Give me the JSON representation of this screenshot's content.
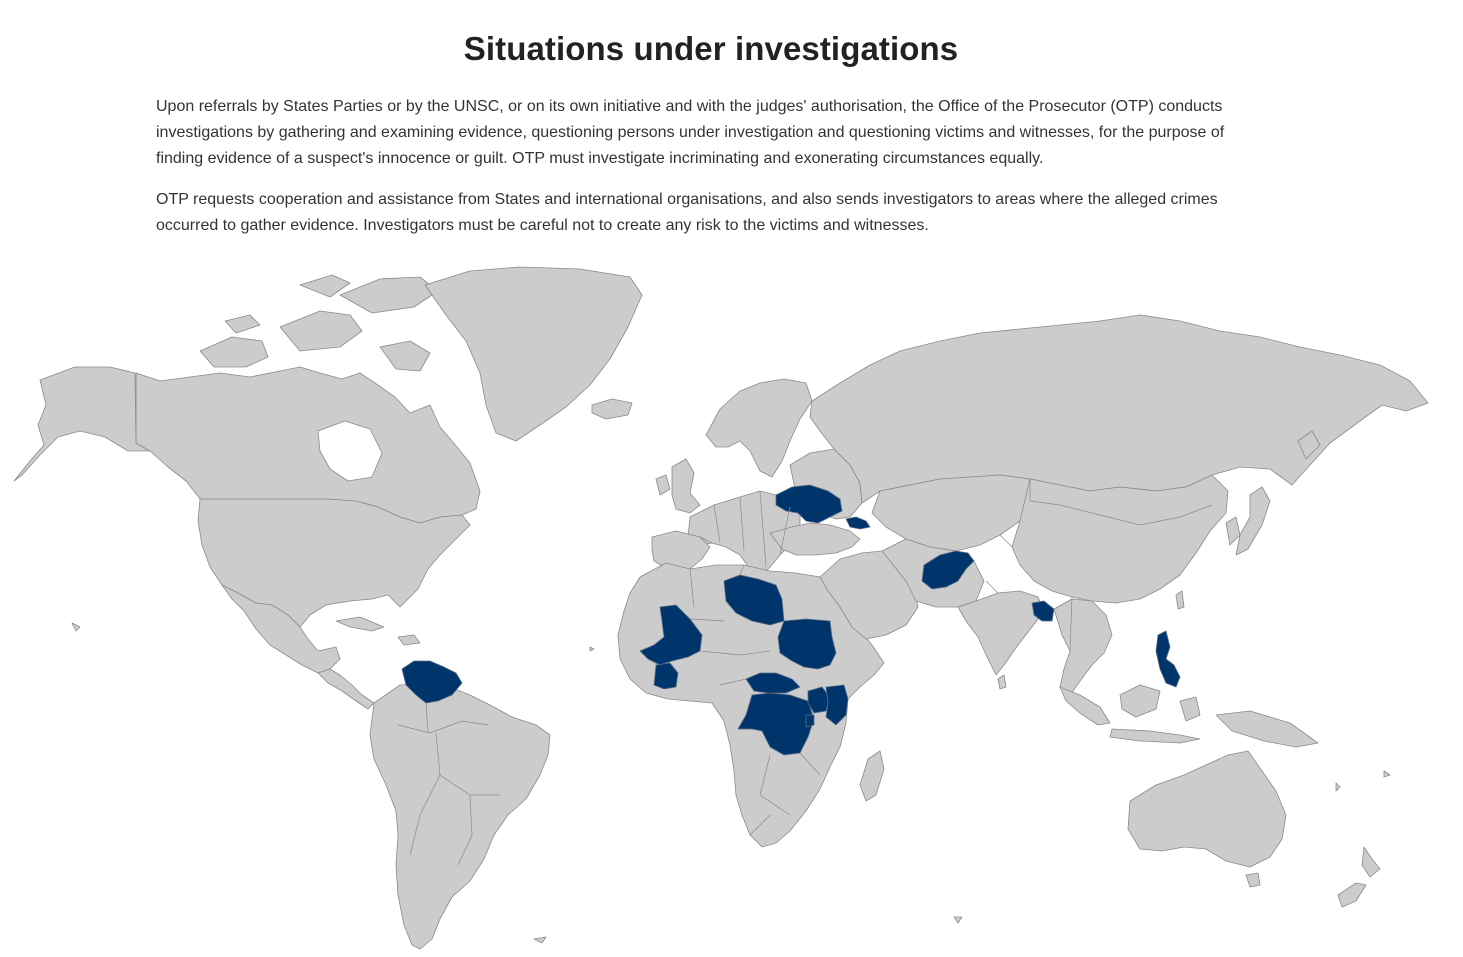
{
  "title": "Situations under investigations",
  "paragraphs": [
    "Upon referrals by States Parties or by the UNSC, or on its own initiative and with the judges' authorisation, the Office of the Prosecutor (OTP) conducts investigations by gathering and examining evidence, questioning persons under investigation and questioning victims and witnesses, for the purpose of finding evidence of a suspect's innocence or guilt. OTP must investigate incriminating and exonerating circumstances equally.",
    "OTP requests cooperation and assistance from States and international organisations, and also sends investigators to areas where the alleged crimes occurred to gather evidence. Investigators must be careful not to create any risk to the victims and witnesses."
  ],
  "map": {
    "land_color": "#cccccc",
    "border_color": "#8a8a8a",
    "highlight_color": "#00356b",
    "highlighted_countries": [
      "ukraine",
      "georgia",
      "afghanistan",
      "bangladesh-myanmar",
      "philippines",
      "libya",
      "mali",
      "cote-divoire",
      "sudan",
      "central-african-republic",
      "dr-congo",
      "uganda",
      "kenya",
      "burundi",
      "venezuela"
    ]
  }
}
